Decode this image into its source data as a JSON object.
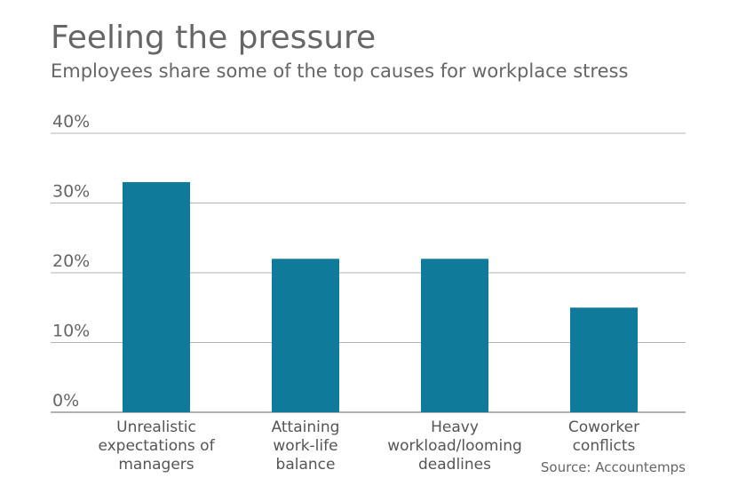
{
  "header": {
    "title": "Feeling the pressure",
    "subtitle": "Employees share some of the top causes for workplace stress"
  },
  "footer": {
    "source": "Source: Accountemps"
  },
  "colors": {
    "bar": "#0f7a99",
    "grid": "#b3b3b3",
    "axis": "#999999"
  },
  "chart_data": {
    "type": "bar",
    "title": "Feeling the pressure",
    "subtitle": "Employees share some of the top causes for workplace stress",
    "categories": [
      [
        "Unrealistic",
        "expectations of",
        "managers"
      ],
      [
        "Attaining",
        "work-life",
        "balance"
      ],
      [
        "Heavy",
        "workload/looming",
        "deadlines"
      ],
      [
        "Coworker",
        "conflicts"
      ]
    ],
    "values": [
      33,
      22,
      22,
      15
    ],
    "ylim": [
      0,
      40
    ],
    "yticks": [
      0,
      10,
      20,
      30,
      40
    ],
    "ytick_labels": [
      "0%",
      "10%",
      "20%",
      "30%",
      "40%"
    ],
    "grid": true
  }
}
